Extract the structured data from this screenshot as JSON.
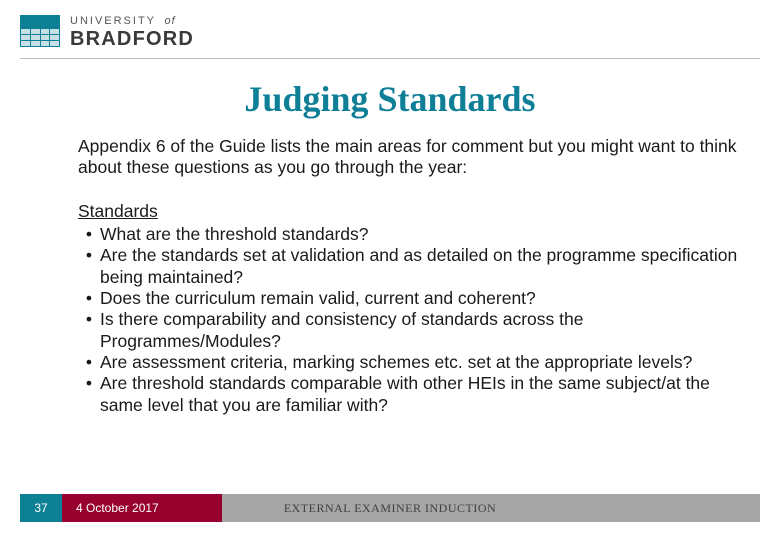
{
  "colors": {
    "brand_teal": "#0d8093",
    "brand_maroon": "#98002e",
    "grey_bar": "#a6a6a6",
    "rule": "#bfbfbf",
    "title_color": "#0e7f97",
    "body_text": "#1a1a1a",
    "logo_grey": "#565656",
    "logo_dark": "#3a3a3a",
    "background": "#ffffff"
  },
  "typography": {
    "title": {
      "family": "Georgia serif",
      "size_pt": 36,
      "weight": "bold"
    },
    "body": {
      "family": "Verdana sans-serif",
      "size_pt": 17.5,
      "line_height": 1.22
    },
    "footer": {
      "size_pt": 12
    }
  },
  "logo": {
    "line1_a": "UNIVERSITY",
    "line1_b": "of",
    "line2": "BRADFORD"
  },
  "title": "Judging Standards",
  "intro": "Appendix 6 of the Guide lists the main areas for comment but you might want to think about these questions as you go through the year:",
  "section_heading": "Standards",
  "bullets": [
    "What are the threshold standards?",
    "Are the standards set at validation and as detailed on the programme specification being maintained?",
    "Does the curriculum remain valid, current and coherent?",
    "Is there comparability and consistency of standards across the Programmes/Modules?",
    "Are assessment criteria, marking schemes etc. set at the appropriate levels?",
    "Are threshold standards comparable with other HEIs in the same subject/at the same level that you are familiar with?"
  ],
  "footer": {
    "page_number": "37",
    "date": "4 October 2017",
    "doc_title": "EXTERNAL EXAMINER INDUCTION"
  }
}
